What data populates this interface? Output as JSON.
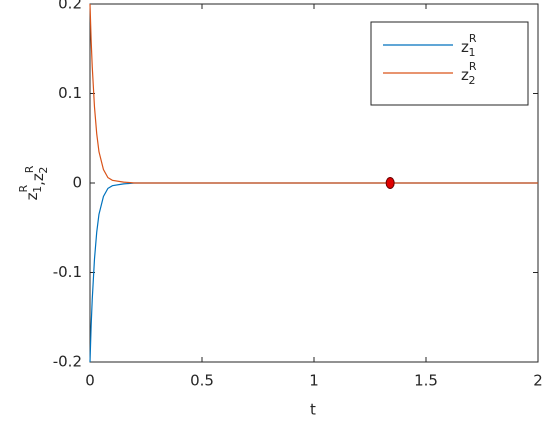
{
  "chart_data": {
    "type": "line",
    "xlabel": "t",
    "ylabel": [
      {
        "base": "z",
        "sub": "1",
        "sup": "R"
      },
      ",",
      {
        "base": "z",
        "sub": "2",
        "sup": "R"
      }
    ],
    "x": [
      0,
      0.005,
      0.01,
      0.02,
      0.03,
      0.04,
      0.06,
      0.08,
      0.1,
      0.15,
      0.2,
      0.3,
      0.5,
      1,
      1.5,
      2
    ],
    "series": [
      {
        "name": {
          "base": "z",
          "sub": "1",
          "sup": "R"
        },
        "color": "#0072bd",
        "values": [
          -0.2,
          -0.16,
          -0.13,
          -0.085,
          -0.055,
          -0.035,
          -0.015,
          -0.006,
          -0.003,
          -0.001,
          0,
          0,
          0,
          0,
          0,
          0
        ]
      },
      {
        "name": {
          "base": "z",
          "sub": "2",
          "sup": "R"
        },
        "color": "#d95319",
        "values": [
          0.2,
          0.16,
          0.13,
          0.085,
          0.055,
          0.035,
          0.015,
          0.006,
          0.003,
          0.001,
          0,
          0,
          0,
          0,
          0,
          0
        ]
      }
    ],
    "marker": {
      "x": 1.34,
      "y": 0,
      "color": "#e00000"
    },
    "xlim": [
      0,
      2
    ],
    "xticks": [
      0,
      0.5,
      1,
      1.5,
      2
    ],
    "ylim": [
      -0.2,
      0.2
    ],
    "yticks": [
      -0.2,
      -0.1,
      0,
      0.1,
      0.2
    ],
    "legend": "upper right"
  }
}
